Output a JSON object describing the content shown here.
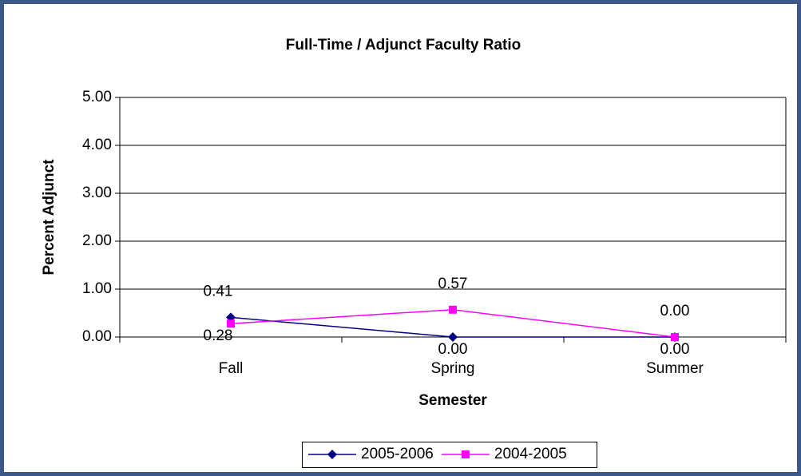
{
  "chart_data": {
    "type": "line",
    "title": "Full-Time / Adjunct Faculty Ratio",
    "x_label": "Semester",
    "y_label": "Percent Adjunct",
    "categories": [
      "Fall",
      "Spring",
      "Summer"
    ],
    "series": [
      {
        "name": "2005-2006",
        "color": "#000080",
        "marker": "diamond",
        "values": [
          0.41,
          0,
          0
        ],
        "value_labels": [
          "0.41",
          "0.00",
          "0.00"
        ]
      },
      {
        "name": "2004-2005",
        "color": "#ff00ff",
        "marker": "square",
        "values": [
          0.28,
          0.57,
          0
        ],
        "value_labels": [
          "0.28",
          "0.57",
          "0.00"
        ]
      }
    ],
    "ylim": [
      0,
      5
    ],
    "yticks": [
      {
        "value": 0,
        "label": "0.00"
      },
      {
        "value": 1,
        "label": "1.00"
      },
      {
        "value": 2,
        "label": "2.00"
      },
      {
        "value": 3,
        "label": "3.00"
      },
      {
        "value": 4,
        "label": "4.00"
      },
      {
        "value": 5,
        "label": "5.00"
      }
    ],
    "grid": true,
    "legend": "bottom"
  }
}
